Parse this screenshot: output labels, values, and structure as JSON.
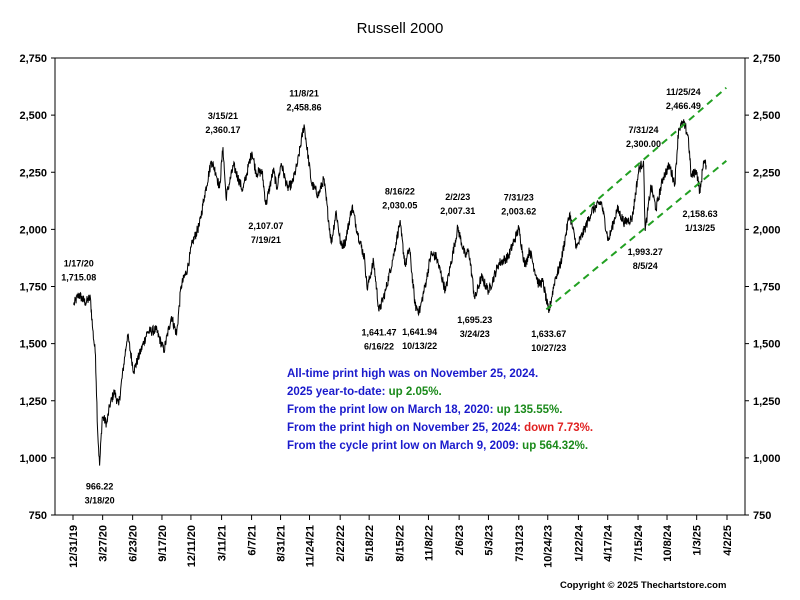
{
  "chart_data": {
    "type": "line",
    "title": "Russell 2000",
    "ylim": [
      750,
      2750
    ],
    "yticks": [
      750,
      1000,
      1250,
      1500,
      1750,
      2000,
      2250,
      2500,
      2750
    ],
    "ytick_labels": [
      "750",
      "1,000",
      "1,250",
      "1,500",
      "1,750",
      "2,000",
      "2,250",
      "2,500",
      "2,750"
    ],
    "xlim": [
      "2019-12-31",
      "2025-04-02"
    ],
    "xtick_labels": [
      "12/31/19",
      "3/27/20",
      "6/23/20",
      "9/17/20",
      "12/11/20",
      "3/11/21",
      "6/7/21",
      "8/31/21",
      "11/24/21",
      "2/22/22",
      "5/18/22",
      "8/15/22",
      "11/8/22",
      "2/6/23",
      "5/3/23",
      "7/31/23",
      "10/24/23",
      "1/22/24",
      "4/17/24",
      "7/15/24",
      "10/8/24",
      "1/3/25",
      "4/2/25"
    ],
    "xtick_dates": [
      "2019-12-31",
      "2020-03-27",
      "2020-06-23",
      "2020-09-17",
      "2020-12-11",
      "2021-03-11",
      "2021-06-07",
      "2021-08-31",
      "2021-11-24",
      "2022-02-22",
      "2022-05-18",
      "2022-08-15",
      "2022-11-08",
      "2023-02-06",
      "2023-05-03",
      "2023-07-31",
      "2023-10-24",
      "2024-01-22",
      "2024-04-17",
      "2024-07-15",
      "2024-10-08",
      "2025-01-03",
      "2025-04-02"
    ],
    "series": [
      {
        "color": "#000000",
        "points": [
          [
            "2020-01-02",
            1670
          ],
          [
            "2020-01-17",
            1715
          ],
          [
            "2020-02-05",
            1680
          ],
          [
            "2020-02-20",
            1700
          ],
          [
            "2020-02-27",
            1560
          ],
          [
            "2020-03-06",
            1450
          ],
          [
            "2020-03-12",
            1130
          ],
          [
            "2020-03-18",
            966
          ],
          [
            "2020-03-26",
            1180
          ],
          [
            "2020-04-08",
            1150
          ],
          [
            "2020-04-17",
            1230
          ],
          [
            "2020-04-30",
            1290
          ],
          [
            "2020-05-13",
            1230
          ],
          [
            "2020-06-08",
            1540
          ],
          [
            "2020-06-26",
            1380
          ],
          [
            "2020-07-15",
            1460
          ],
          [
            "2020-08-05",
            1550
          ],
          [
            "2020-08-31",
            1560
          ],
          [
            "2020-09-23",
            1470
          ],
          [
            "2020-10-15",
            1620
          ],
          [
            "2020-10-30",
            1540
          ],
          [
            "2020-11-12",
            1750
          ],
          [
            "2020-12-01",
            1830
          ],
          [
            "2020-12-15",
            1940
          ],
          [
            "2021-01-05",
            2020
          ],
          [
            "2021-01-20",
            2150
          ],
          [
            "2021-02-09",
            2300
          ],
          [
            "2021-02-22",
            2250
          ],
          [
            "2021-03-05",
            2180
          ],
          [
            "2021-03-15",
            2360
          ],
          [
            "2021-03-24",
            2140
          ],
          [
            "2021-04-15",
            2280
          ],
          [
            "2021-05-12",
            2170
          ],
          [
            "2021-06-08",
            2340
          ],
          [
            "2021-06-20",
            2250
          ],
          [
            "2021-07-08",
            2250
          ],
          [
            "2021-07-19",
            2107
          ],
          [
            "2021-08-10",
            2260
          ],
          [
            "2021-08-20",
            2180
          ],
          [
            "2021-09-02",
            2290
          ],
          [
            "2021-09-20",
            2180
          ],
          [
            "2021-10-04",
            2200
          ],
          [
            "2021-10-20",
            2290
          ],
          [
            "2021-11-08",
            2459
          ],
          [
            "2021-11-30",
            2200
          ],
          [
            "2021-12-20",
            2150
          ],
          [
            "2022-01-05",
            2220
          ],
          [
            "2022-01-27",
            1940
          ],
          [
            "2022-02-10",
            2080
          ],
          [
            "2022-02-24",
            1930
          ],
          [
            "2022-03-08",
            1940
          ],
          [
            "2022-03-29",
            2100
          ],
          [
            "2022-04-15",
            1980
          ],
          [
            "2022-05-05",
            1870
          ],
          [
            "2022-05-12",
            1740
          ],
          [
            "2022-05-31",
            1860
          ],
          [
            "2022-06-16",
            1641
          ],
          [
            "2022-07-05",
            1730
          ],
          [
            "2022-07-29",
            1890
          ],
          [
            "2022-08-16",
            2030
          ],
          [
            "2022-09-01",
            1840
          ],
          [
            "2022-09-13",
            1920
          ],
          [
            "2022-09-30",
            1665
          ],
          [
            "2022-10-13",
            1642
          ],
          [
            "2022-11-02",
            1780
          ],
          [
            "2022-11-15",
            1890
          ],
          [
            "2022-12-01",
            1880
          ],
          [
            "2022-12-28",
            1730
          ],
          [
            "2023-01-10",
            1830
          ],
          [
            "2023-02-02",
            2007
          ],
          [
            "2023-02-24",
            1880
          ],
          [
            "2023-03-06",
            1910
          ],
          [
            "2023-03-24",
            1695
          ],
          [
            "2023-04-12",
            1790
          ],
          [
            "2023-05-04",
            1730
          ],
          [
            "2023-06-02",
            1850
          ],
          [
            "2023-06-30",
            1880
          ],
          [
            "2023-07-31",
            2004
          ],
          [
            "2023-08-18",
            1840
          ],
          [
            "2023-09-01",
            1910
          ],
          [
            "2023-09-27",
            1760
          ],
          [
            "2023-10-10",
            1770
          ],
          [
            "2023-10-27",
            1634
          ],
          [
            "2023-11-14",
            1780
          ],
          [
            "2023-12-01",
            1850
          ],
          [
            "2023-12-27",
            2070
          ],
          [
            "2024-01-17",
            1920
          ],
          [
            "2024-02-09",
            2000
          ],
          [
            "2024-03-01",
            2080
          ],
          [
            "2024-03-29",
            2120
          ],
          [
            "2024-04-19",
            1950
          ],
          [
            "2024-05-15",
            2090
          ],
          [
            "2024-06-05",
            2030
          ],
          [
            "2024-06-28",
            2050
          ],
          [
            "2024-07-17",
            2260
          ],
          [
            "2024-07-31",
            2300
          ],
          [
            "2024-08-05",
            1993
          ],
          [
            "2024-08-22",
            2190
          ],
          [
            "2024-09-06",
            2090
          ],
          [
            "2024-09-27",
            2230
          ],
          [
            "2024-10-15",
            2280
          ],
          [
            "2024-10-31",
            2200
          ],
          [
            "2024-11-11",
            2440
          ],
          [
            "2024-11-25",
            2466
          ],
          [
            "2024-12-09",
            2410
          ],
          [
            "2024-12-18",
            2230
          ],
          [
            "2025-01-02",
            2260
          ],
          [
            "2025-01-13",
            2159
          ],
          [
            "2025-01-23",
            2300
          ],
          [
            "2025-01-31",
            2280
          ]
        ]
      }
    ],
    "trendlines": [
      {
        "type": "upper",
        "color": "#22a022",
        "from": [
          "2024-01-01",
          2030
        ],
        "to": [
          "2025-03-31",
          2620
        ]
      },
      {
        "type": "lower",
        "color": "#22a022",
        "from": [
          "2023-10-20",
          1650
        ],
        "to": [
          "2025-03-31",
          2300
        ]
      }
    ],
    "annotations": [
      {
        "date": "2020-01-17",
        "value": 1715,
        "label": "1/17/20",
        "sub": "1,715.08",
        "pos": "above"
      },
      {
        "date": "2020-03-18",
        "value": 966,
        "label": "966.22",
        "sub": "3/18/20",
        "pos": "below"
      },
      {
        "date": "2021-03-15",
        "value": 2360,
        "label": "3/15/21",
        "sub": "2,360.17",
        "pos": "above"
      },
      {
        "date": "2021-07-19",
        "value": 2107,
        "label": "2,107.07",
        "sub": "7/19/21",
        "pos": "below"
      },
      {
        "date": "2021-11-08",
        "value": 2459,
        "label": "11/8/21",
        "sub": "2,458.86",
        "pos": "above"
      },
      {
        "date": "2022-06-16",
        "value": 1641,
        "label": "1,641.47",
        "sub": "6/16/22",
        "pos": "below"
      },
      {
        "date": "2022-08-16",
        "value": 2030,
        "label": "8/16/22",
        "sub": "2,030.05",
        "pos": "above"
      },
      {
        "date": "2022-10-13",
        "value": 1642,
        "label": "1,641.94",
        "sub": "10/13/22",
        "pos": "below"
      },
      {
        "date": "2023-02-02",
        "value": 2007,
        "label": "2/2/23",
        "sub": "2,007.31",
        "pos": "above"
      },
      {
        "date": "2023-03-24",
        "value": 1695,
        "label": "1,695.23",
        "sub": "3/24/23",
        "pos": "below"
      },
      {
        "date": "2023-07-31",
        "value": 2004,
        "label": "7/31/23",
        "sub": "2,003.62",
        "pos": "above"
      },
      {
        "date": "2023-10-27",
        "value": 1634,
        "label": "1,633.67",
        "sub": "10/27/23",
        "pos": "below"
      },
      {
        "date": "2024-07-31",
        "value": 2300,
        "label": "7/31/24",
        "sub": "2,300.00",
        "pos": "above"
      },
      {
        "date": "2024-08-05",
        "value": 1993,
        "label": "1,993.27",
        "sub": "8/5/24",
        "pos": "below"
      },
      {
        "date": "2024-11-25",
        "value": 2466,
        "label": "11/25/24",
        "sub": "2,466.49",
        "pos": "above"
      },
      {
        "date": "2025-01-13",
        "value": 2159,
        "label": "2,158.63",
        "sub": "1/13/25",
        "pos": "below"
      }
    ],
    "notes": [
      [
        {
          "t": "All-time print high was on November 25, 2024.",
          "c": "#1a1acc"
        }
      ],
      [
        {
          "t": "2025 year-to-date: ",
          "c": "#1a1acc"
        },
        {
          "t": "up 2.05%.",
          "c": "#1a8a1a"
        }
      ],
      [
        {
          "t": "From the print low on March 18, 2020:  ",
          "c": "#1a1acc"
        },
        {
          "t": "up 135.55%.",
          "c": "#1a8a1a"
        }
      ],
      [
        {
          "t": "From the print high on November 25, 2024:  ",
          "c": "#1a1acc"
        },
        {
          "t": "down 7.73%.",
          "c": "#e02020"
        }
      ],
      [
        {
          "t": "From the cycle print low on March 9, 2009:  ",
          "c": "#1a1acc"
        },
        {
          "t": "up 564.32%.",
          "c": "#1a8a1a"
        }
      ]
    ]
  },
  "copyright": "Copyright © 2025 Thechartstore.com"
}
